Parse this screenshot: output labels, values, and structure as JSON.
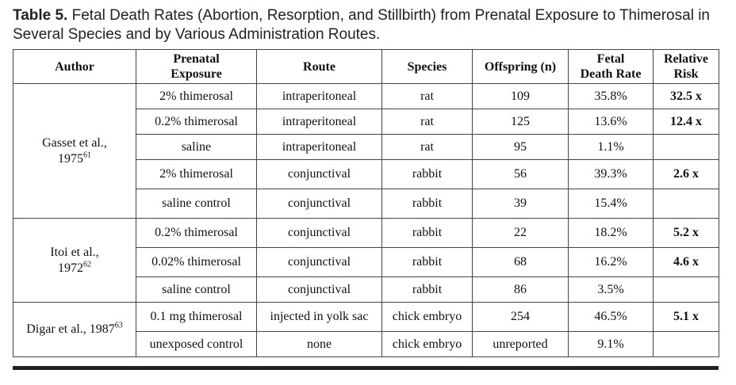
{
  "caption": {
    "label": "Table 5.",
    "text": "Fetal Death Rates (Abortion, Resorption, and Stillbirth) from Prenatal Exposure to Thimerosal in Several Species and by Various Administration Routes."
  },
  "headers": {
    "author": "Author",
    "exposure_1": "Prenatal",
    "exposure_2": "Exposure",
    "route": "Route",
    "species": "Species",
    "offspring": "Offspring (n)",
    "rate_1": "Fetal",
    "rate_2": "Death Rate",
    "risk_1": "Relative",
    "risk_2": "Risk"
  },
  "groups": [
    {
      "author_line1": "Gasset et al.,",
      "author_line2": "1975",
      "ref": "61",
      "rows": [
        {
          "exposure": "2% thimerosal",
          "route": "intraperitoneal",
          "species": "rat",
          "offspring": "109",
          "rate": "35.8%",
          "risk": "32.5 x"
        },
        {
          "exposure": "0.2% thimerosal",
          "route": "intraperitoneal",
          "species": "rat",
          "offspring": "125",
          "rate": "13.6%",
          "risk": "12.4 x"
        },
        {
          "exposure": "saline",
          "route": "intraperitoneal",
          "species": "rat",
          "offspring": "95",
          "rate": "1.1%",
          "risk": ""
        },
        {
          "exposure": "2% thimerosal",
          "route": "conjunctival",
          "species": "rabbit",
          "offspring": "56",
          "rate": "39.3%",
          "risk": "2.6 x"
        },
        {
          "exposure": "saline control",
          "route": "conjunctival",
          "species": "rabbit",
          "offspring": "39",
          "rate": "15.4%",
          "risk": ""
        }
      ]
    },
    {
      "author_line1": "Itoi et al.,",
      "author_line2": "1972",
      "ref": "62",
      "rows": [
        {
          "exposure": "0.2% thimerosal",
          "route": "conjunctival",
          "species": "rabbit",
          "offspring": "22",
          "rate": "18.2%",
          "risk": "5.2 x"
        },
        {
          "exposure": "0.02% thimerosal",
          "route": "conjunctival",
          "species": "rabbit",
          "offspring": "68",
          "rate": "16.2%",
          "risk": "4.6 x"
        },
        {
          "exposure": "saline control",
          "route": "conjunctival",
          "species": "rabbit",
          "offspring": "86",
          "rate": "3.5%",
          "risk": ""
        }
      ]
    },
    {
      "author_line1": "Digar et al., 1987",
      "author_line2": "",
      "ref": "63",
      "rows": [
        {
          "exposure": "0.1 mg thimerosal",
          "route": "injected in yolk sac",
          "species": "chick embryo",
          "offspring": "254",
          "rate": "46.5%",
          "risk": "5.1 x"
        },
        {
          "exposure": "unexposed control",
          "route": "none",
          "species": "chick embryo",
          "offspring": "unreported",
          "rate": "9.1%",
          "risk": ""
        }
      ]
    }
  ]
}
